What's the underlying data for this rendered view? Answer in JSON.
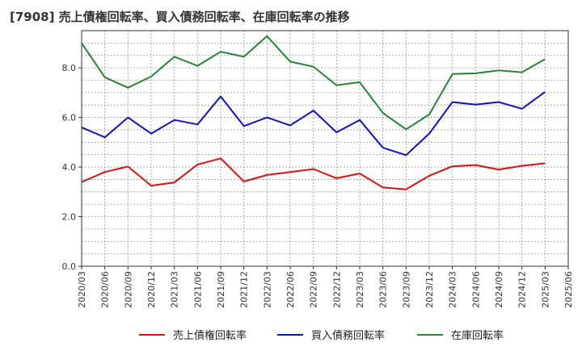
{
  "chart_data": {
    "type": "line",
    "title": "[7908]  売上債権回転率、買入債務回転率、在庫回転率の推移",
    "xlabel": "",
    "ylabel": "",
    "ylim": [
      0,
      9.5
    ],
    "yticks": [
      "0.0",
      "2.0",
      "4.0",
      "6.0",
      "8.0"
    ],
    "x": [
      "2020/03",
      "2020/06",
      "2020/09",
      "2020/12",
      "2021/03",
      "2021/06",
      "2021/09",
      "2021/12",
      "2022/03",
      "2022/06",
      "2022/09",
      "2022/12",
      "2023/03",
      "2023/06",
      "2023/09",
      "2023/12",
      "2024/03",
      "2024/06",
      "2024/09",
      "2024/12",
      "2025/03",
      "2025/06"
    ],
    "series": [
      {
        "name": "売上債権回転率",
        "color": "#dd1111",
        "values": [
          3.4,
          3.8,
          4.02,
          3.25,
          3.38,
          4.1,
          4.35,
          3.42,
          3.68,
          3.8,
          3.92,
          3.55,
          3.74,
          3.18,
          3.1,
          3.65,
          4.03,
          4.08,
          3.9,
          4.05,
          4.15,
          null
        ]
      },
      {
        "name": "買入債務回転率",
        "color": "#1111cc",
        "values": [
          5.6,
          5.2,
          6.0,
          5.35,
          5.9,
          5.72,
          6.85,
          5.65,
          6.0,
          5.68,
          6.28,
          5.4,
          5.9,
          4.78,
          4.48,
          5.35,
          6.62,
          6.52,
          6.62,
          6.35,
          7.03,
          null
        ]
      },
      {
        "name": "在庫回転率",
        "color": "#228833",
        "values": [
          9.0,
          7.62,
          7.2,
          7.65,
          8.45,
          8.08,
          8.65,
          8.45,
          9.28,
          8.25,
          8.05,
          7.3,
          7.42,
          6.18,
          5.52,
          6.12,
          7.75,
          7.78,
          7.9,
          7.82,
          8.35,
          null
        ]
      }
    ],
    "grid": true,
    "legend": "bottom"
  }
}
